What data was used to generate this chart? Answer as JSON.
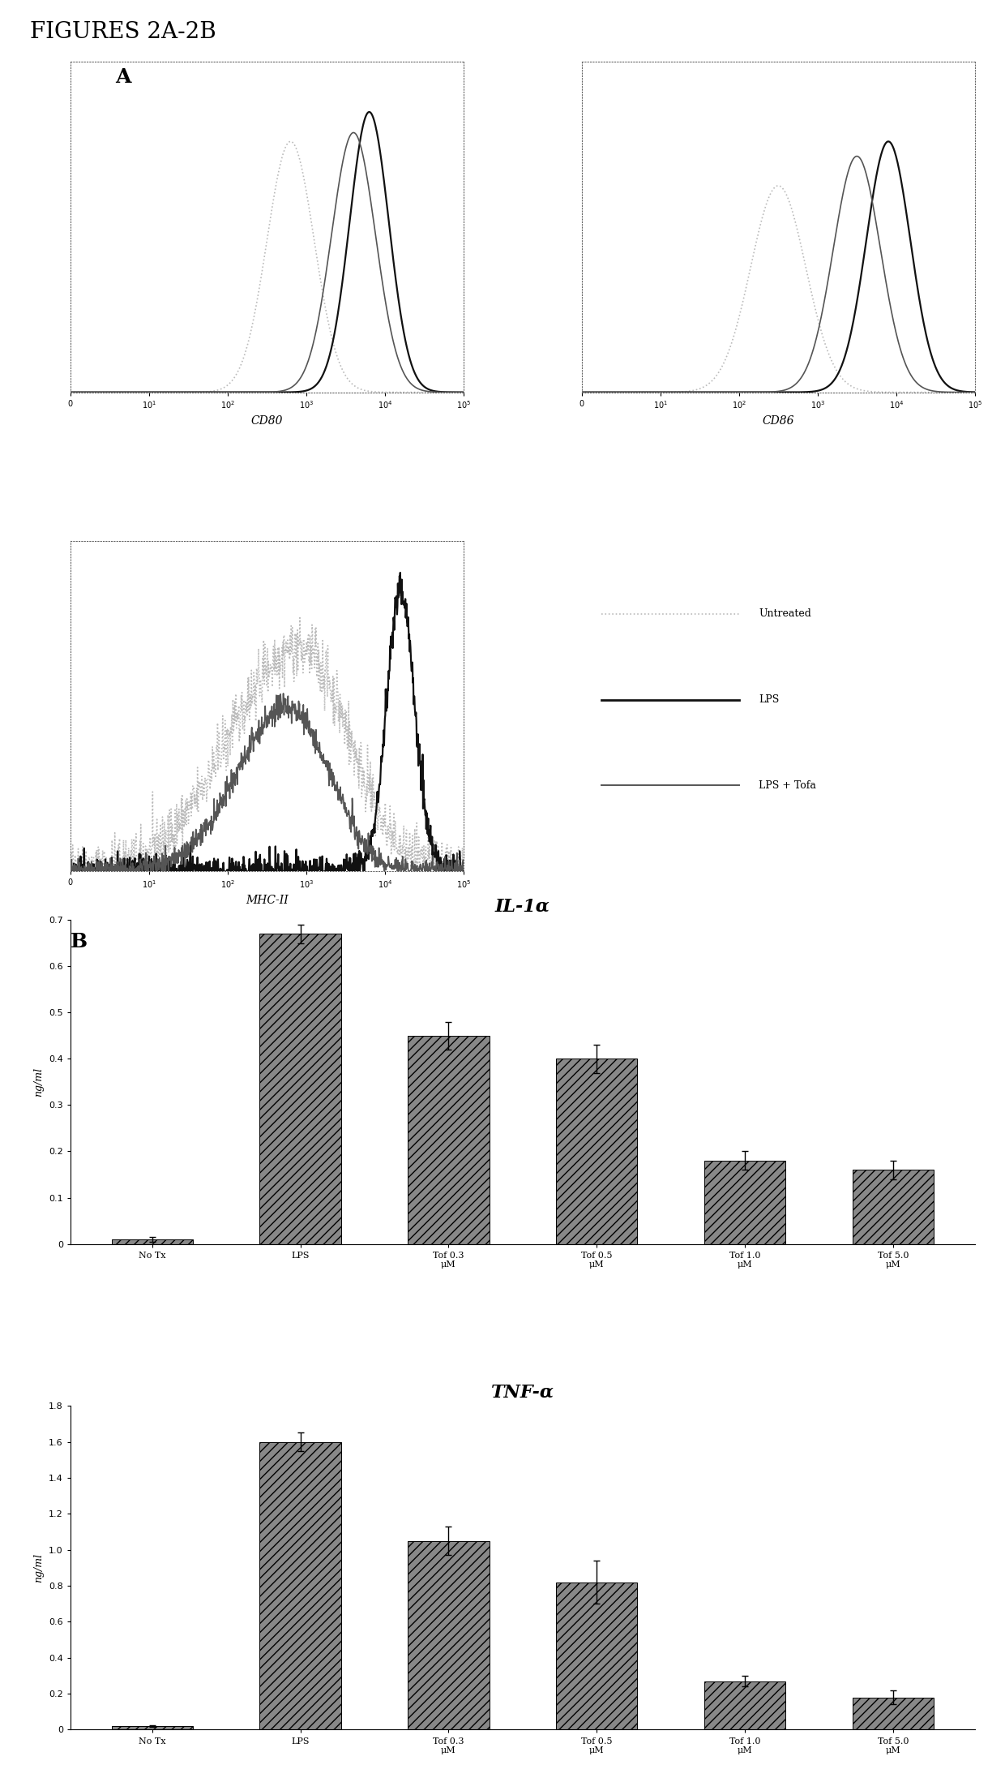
{
  "figure_title": "FIGURES 2A-2B",
  "panel_a_label": "A",
  "panel_b_label": "B",
  "flow_labels": [
    "CD80",
    "CD86",
    "MHC-II"
  ],
  "legend_labels": [
    "Untreated",
    "LPS",
    "LPS + Tofa"
  ],
  "il1a_title": "IL-1α",
  "tnfa_title": "TNF-α",
  "bar_categories": [
    "No Tx",
    "LPS",
    "Tof 0.3\nμM",
    "Tof 0.5\nμM",
    "Tof 1.0\nμM",
    "Tof 5.0\nμM"
  ],
  "il1a_values": [
    0.01,
    0.67,
    0.45,
    0.4,
    0.18,
    0.16
  ],
  "il1a_errors": [
    0.005,
    0.02,
    0.03,
    0.03,
    0.02,
    0.02
  ],
  "il1a_ylim": [
    0,
    0.7
  ],
  "il1a_yticks": [
    0,
    0.1,
    0.2,
    0.3,
    0.4,
    0.5,
    0.6,
    0.7
  ],
  "tnfa_values": [
    0.02,
    1.6,
    1.05,
    0.82,
    0.27,
    0.18
  ],
  "tnfa_errors": [
    0.005,
    0.05,
    0.08,
    0.12,
    0.03,
    0.04
  ],
  "tnfa_ylim": [
    0,
    1.8
  ],
  "tnfa_yticks": [
    0,
    0.2,
    0.4,
    0.6,
    0.8,
    1.0,
    1.2,
    1.4,
    1.6,
    1.8
  ],
  "bar_color": "#888888",
  "hatch": "///",
  "ylabel_bar": "ng/ml",
  "background_color": "#ffffff",
  "text_color": "#000000"
}
